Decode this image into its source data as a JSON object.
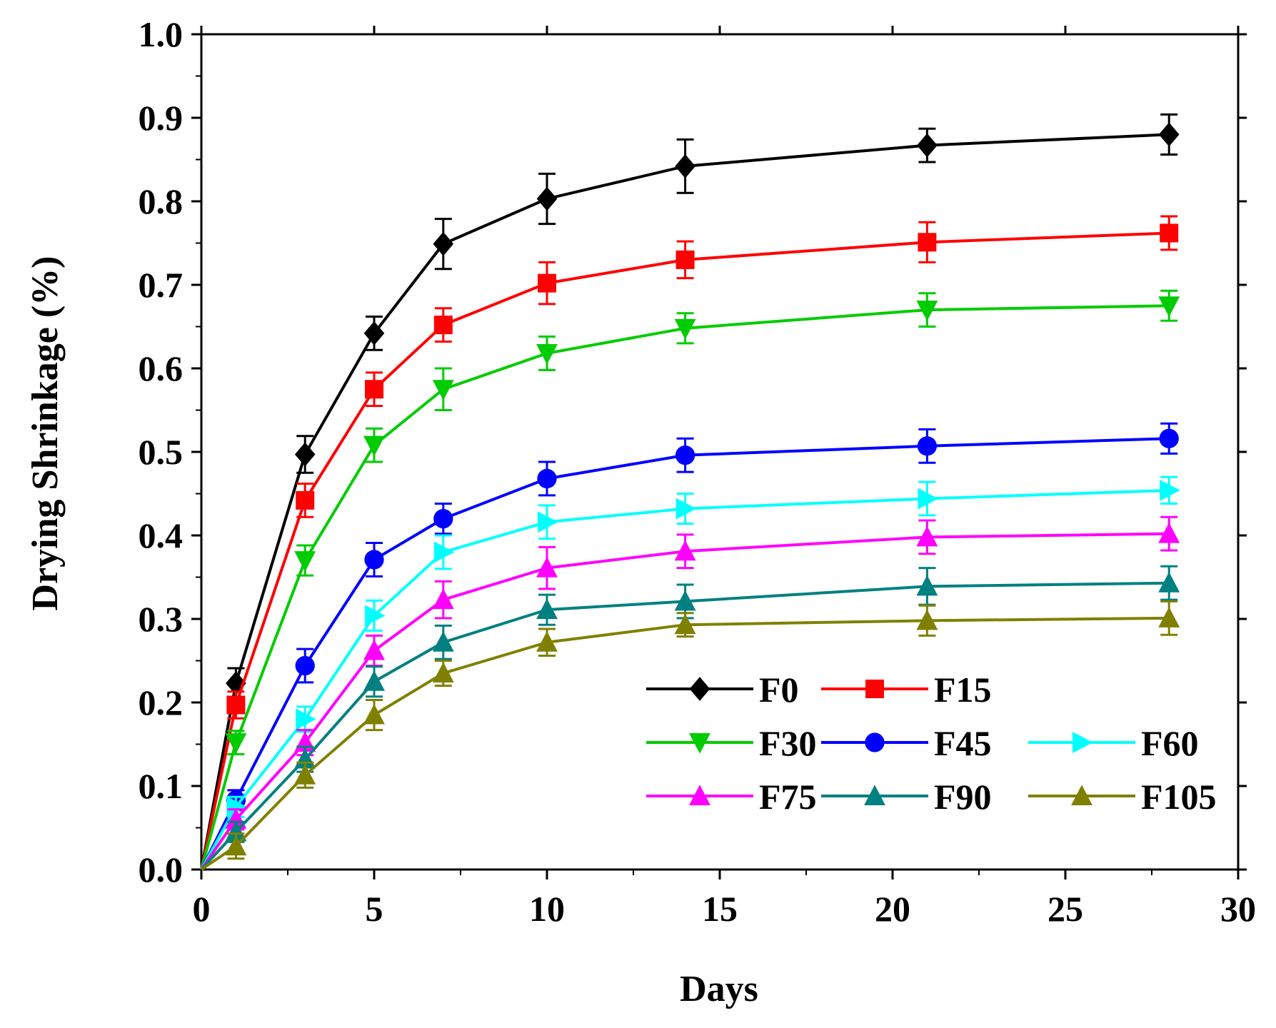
{
  "chart_data": {
    "type": "line",
    "title": "",
    "xlabel": "Days",
    "ylabel": "Drying Shrinkage (%)",
    "xlim": [
      0,
      30
    ],
    "ylim": [
      0.0,
      1.0
    ],
    "xticks": [
      0,
      5,
      10,
      15,
      20,
      25,
      30
    ],
    "yticks": [
      0.0,
      0.1,
      0.2,
      0.3,
      0.4,
      0.5,
      0.6,
      0.7,
      0.8,
      0.9,
      1.0
    ],
    "xtick_labels": [
      "0",
      "5",
      "10",
      "15",
      "20",
      "25",
      "30"
    ],
    "ytick_labels": [
      "0.0",
      "0.1",
      "0.2",
      "0.3",
      "0.4",
      "0.5",
      "0.6",
      "0.7",
      "0.8",
      "0.9",
      "1.0"
    ],
    "grid": false,
    "legend_position": "bottom-right",
    "x": [
      0,
      1,
      3,
      5,
      7,
      10,
      14,
      21,
      28
    ],
    "series": [
      {
        "name": "F0",
        "color": "#000000",
        "marker": "diamond",
        "values": [
          0,
          0.223,
          0.497,
          0.642,
          0.749,
          0.803,
          0.842,
          0.867,
          0.88
        ],
        "errors": [
          0,
          0.018,
          0.022,
          0.02,
          0.03,
          0.03,
          0.032,
          0.02,
          0.024
        ]
      },
      {
        "name": "F15",
        "color": "#ff0000",
        "marker": "square",
        "values": [
          0,
          0.197,
          0.442,
          0.575,
          0.652,
          0.702,
          0.73,
          0.751,
          0.762
        ],
        "errors": [
          0,
          0.016,
          0.02,
          0.02,
          0.02,
          0.025,
          0.022,
          0.024,
          0.02
        ]
      },
      {
        "name": "F30",
        "color": "#00cc00",
        "marker": "triangle-down",
        "values": [
          0,
          0.152,
          0.37,
          0.508,
          0.575,
          0.618,
          0.648,
          0.67,
          0.675
        ],
        "errors": [
          0,
          0.014,
          0.018,
          0.02,
          0.025,
          0.02,
          0.018,
          0.02,
          0.018
        ]
      },
      {
        "name": "F45",
        "color": "#0000ff",
        "marker": "circle",
        "values": [
          0,
          0.083,
          0.244,
          0.371,
          0.42,
          0.468,
          0.496,
          0.507,
          0.516
        ],
        "errors": [
          0,
          0.012,
          0.02,
          0.02,
          0.018,
          0.02,
          0.02,
          0.02,
          0.018
        ]
      },
      {
        "name": "F60",
        "color": "#00ffff",
        "marker": "triangle-right",
        "values": [
          0,
          0.075,
          0.18,
          0.304,
          0.38,
          0.416,
          0.432,
          0.444,
          0.454
        ],
        "errors": [
          0,
          0.012,
          0.015,
          0.018,
          0.02,
          0.02,
          0.018,
          0.02,
          0.016
        ]
      },
      {
        "name": "F75",
        "color": "#ff00ff",
        "marker": "triangle-up",
        "values": [
          0,
          0.06,
          0.152,
          0.262,
          0.323,
          0.361,
          0.381,
          0.398,
          0.402
        ],
        "errors": [
          0,
          0.012,
          0.015,
          0.018,
          0.022,
          0.025,
          0.02,
          0.02,
          0.02
        ]
      },
      {
        "name": "F90",
        "color": "#008080",
        "marker": "triangle-up",
        "values": [
          0,
          0.045,
          0.132,
          0.225,
          0.272,
          0.311,
          0.321,
          0.339,
          0.343
        ],
        "errors": [
          0,
          0.012,
          0.015,
          0.018,
          0.02,
          0.018,
          0.02,
          0.022,
          0.02
        ]
      },
      {
        "name": "F105",
        "color": "#808000",
        "marker": "triangle-up",
        "values": [
          0,
          0.028,
          0.113,
          0.185,
          0.235,
          0.272,
          0.293,
          0.298,
          0.301
        ],
        "errors": [
          0,
          0.015,
          0.015,
          0.018,
          0.015,
          0.016,
          0.014,
          0.018,
          0.02
        ]
      }
    ]
  }
}
